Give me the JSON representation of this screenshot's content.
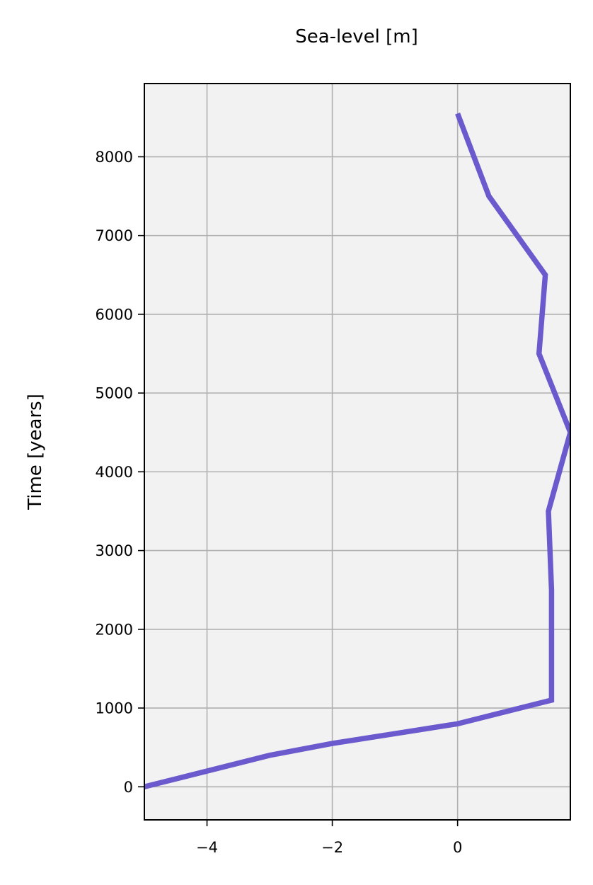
{
  "chart_data": {
    "type": "line",
    "title": "Sea-level [m]",
    "xlabel": "",
    "ylabel": "Time [years]",
    "xlim": [
      -5,
      1.8
    ],
    "ylim": [
      -420,
      8930
    ],
    "xticks": [
      -4,
      -2,
      0
    ],
    "xtick_labels": [
      "−4",
      "−2",
      "0"
    ],
    "yticks": [
      0,
      1000,
      2000,
      3000,
      4000,
      5000,
      6000,
      7000,
      8000
    ],
    "ytick_labels": [
      "0",
      "1000",
      "2000",
      "3000",
      "4000",
      "5000",
      "6000",
      "7000",
      "8000"
    ],
    "grid": true,
    "series": [
      {
        "color": "#6a5acd",
        "points": [
          {
            "x": -5,
            "y": 0
          },
          {
            "x": -3,
            "y": 400
          },
          {
            "x": -2,
            "y": 550
          },
          {
            "x": -0.8,
            "y": 700
          },
          {
            "x": 0,
            "y": 800
          },
          {
            "x": 1.5,
            "y": 1100
          },
          {
            "x": 1.5,
            "y": 2500
          },
          {
            "x": 1.45,
            "y": 3500
          },
          {
            "x": 1.8,
            "y": 4500
          },
          {
            "x": 1.3,
            "y": 5500
          },
          {
            "x": 1.4,
            "y": 6500
          },
          {
            "x": 0.5,
            "y": 7500
          },
          {
            "x": 0,
            "y": 8550
          }
        ]
      }
    ],
    "colors": {
      "plot_background": "#f2f2f2",
      "grid": "#b0b0b0",
      "line": "#6a5acd"
    }
  }
}
